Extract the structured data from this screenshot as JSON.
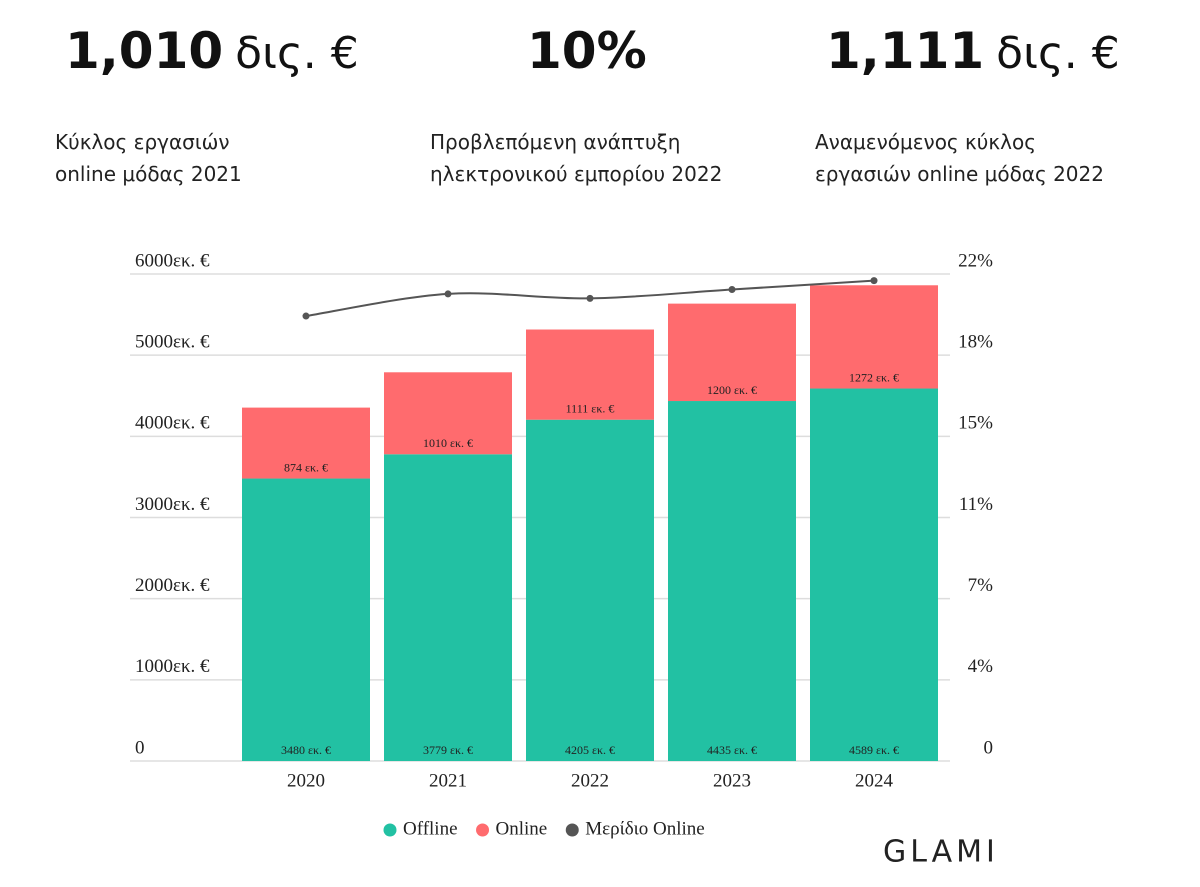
{
  "stats": [
    {
      "value": "1,010",
      "unit": "δις. €",
      "label": [
        "Κύκλος εργασιών",
        "online μόδας 2021"
      ]
    },
    {
      "value": "10%",
      "label": [
        "Προβλεπόμενη ανάπτυξη",
        "ηλεκτρονικού εμπορίου 2022"
      ]
    },
    {
      "value": "1,111",
      "unit": "δις. €",
      "label": [
        "Αναμενόμενος κύκλος",
        "εργασιών online μόδας 2022"
      ]
    }
  ],
  "logo": "GLAMI",
  "chart_data": {
    "type": "bar",
    "stacked": true,
    "categories": [
      "2020",
      "2021",
      "2022",
      "2023",
      "2024"
    ],
    "series": [
      {
        "name": "Offline",
        "color": "#22c1a3",
        "values": [
          3480,
          3779,
          4205,
          4435,
          4589
        ],
        "value_labels": [
          "3480 εκ. €",
          "3779 εκ. €",
          "4205 εκ. €",
          "4435 εκ. €",
          "4589 εκ. €"
        ]
      },
      {
        "name": "Online",
        "color": "#ff6b6e",
        "values": [
          874,
          1010,
          1111,
          1200,
          1272
        ],
        "value_labels": [
          "874 εκ. €",
          "1010 εκ. €",
          "1111 εκ. €",
          "1200 εκ. €",
          "1272 εκ. €"
        ]
      },
      {
        "name": "Μερίδιο Online",
        "color": "#555555",
        "type": "line",
        "axis": "y2",
        "values": [
          20.1,
          21.1,
          20.9,
          21.3,
          21.7
        ]
      }
    ],
    "ylim": [
      0,
      6000
    ],
    "yticks": [
      0,
      {
        "value": 1000,
        "label": "1000εκ. €"
      },
      {
        "value": 2000,
        "label": "2000εκ. €"
      },
      {
        "value": 3000,
        "label": "3000εκ. €"
      },
      {
        "value": 4000,
        "label": "4000εκ. €"
      },
      {
        "value": 5000,
        "label": "5000εκ. €"
      },
      {
        "value": 6000,
        "label": "6000εκ. €"
      }
    ],
    "y2lim": [
      0,
      22
    ],
    "y2ticks": [
      0,
      {
        "value": 3.67,
        "label": "4%"
      },
      {
        "value": 7.33,
        "label": "7%"
      },
      {
        "value": 11,
        "label": "11%"
      },
      {
        "value": 14.67,
        "label": "15%"
      },
      {
        "value": 18.33,
        "label": "18%"
      },
      {
        "value": 22,
        "label": "22%"
      }
    ],
    "grid": true,
    "legend": "bottom"
  }
}
